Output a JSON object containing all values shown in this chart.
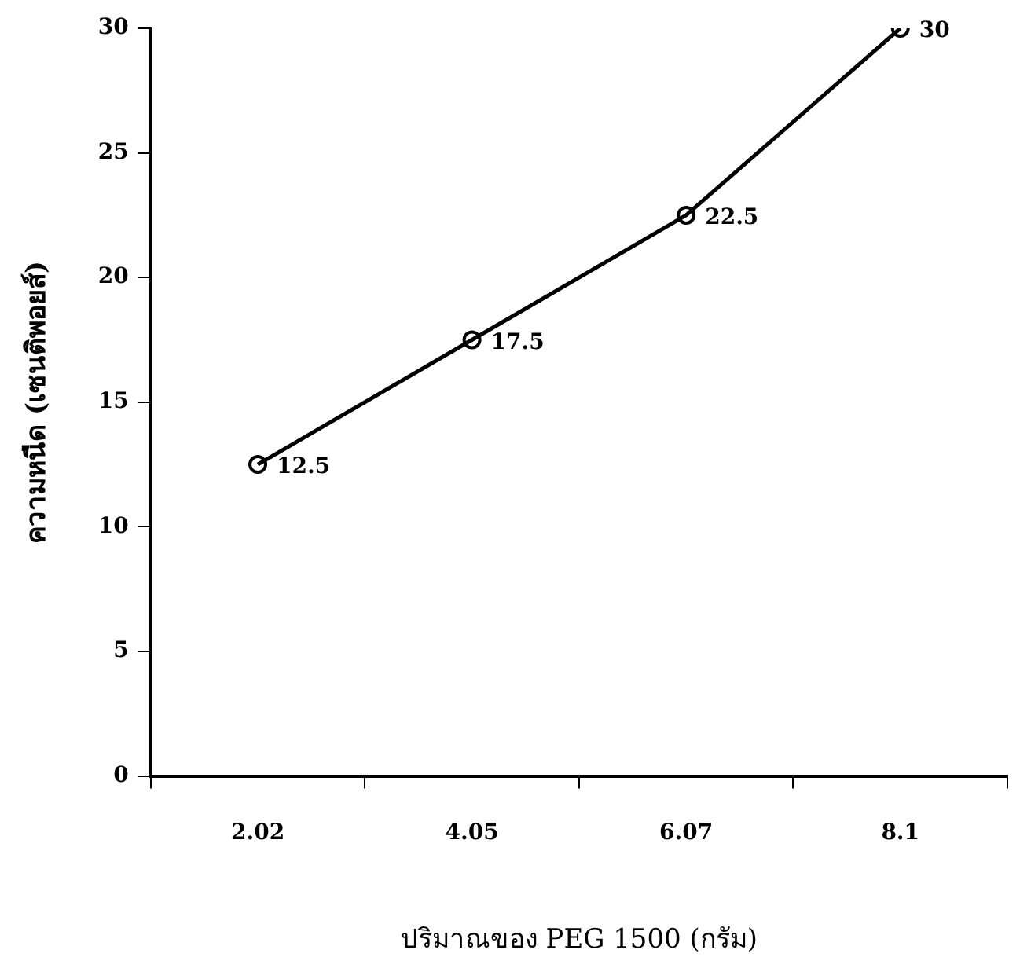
{
  "chart_data": {
    "type": "line",
    "xlabel": "ปริมาณของ PEG 1500 (กรัม)",
    "ylabel": "ความหนืด (เซนติพอยส์)",
    "categories": [
      "2.02",
      "4.05",
      "6.07",
      "8.1"
    ],
    "series": [
      {
        "color": "#000000",
        "values": [
          12.5,
          17.5,
          22.5,
          30
        ]
      }
    ],
    "ylim": [
      0,
      30
    ],
    "yticks": [
      0,
      5,
      10,
      15,
      20,
      25,
      30
    ],
    "grid": false,
    "legend": false,
    "marker": "circle",
    "line_style": "solid",
    "data_labels": true
  }
}
